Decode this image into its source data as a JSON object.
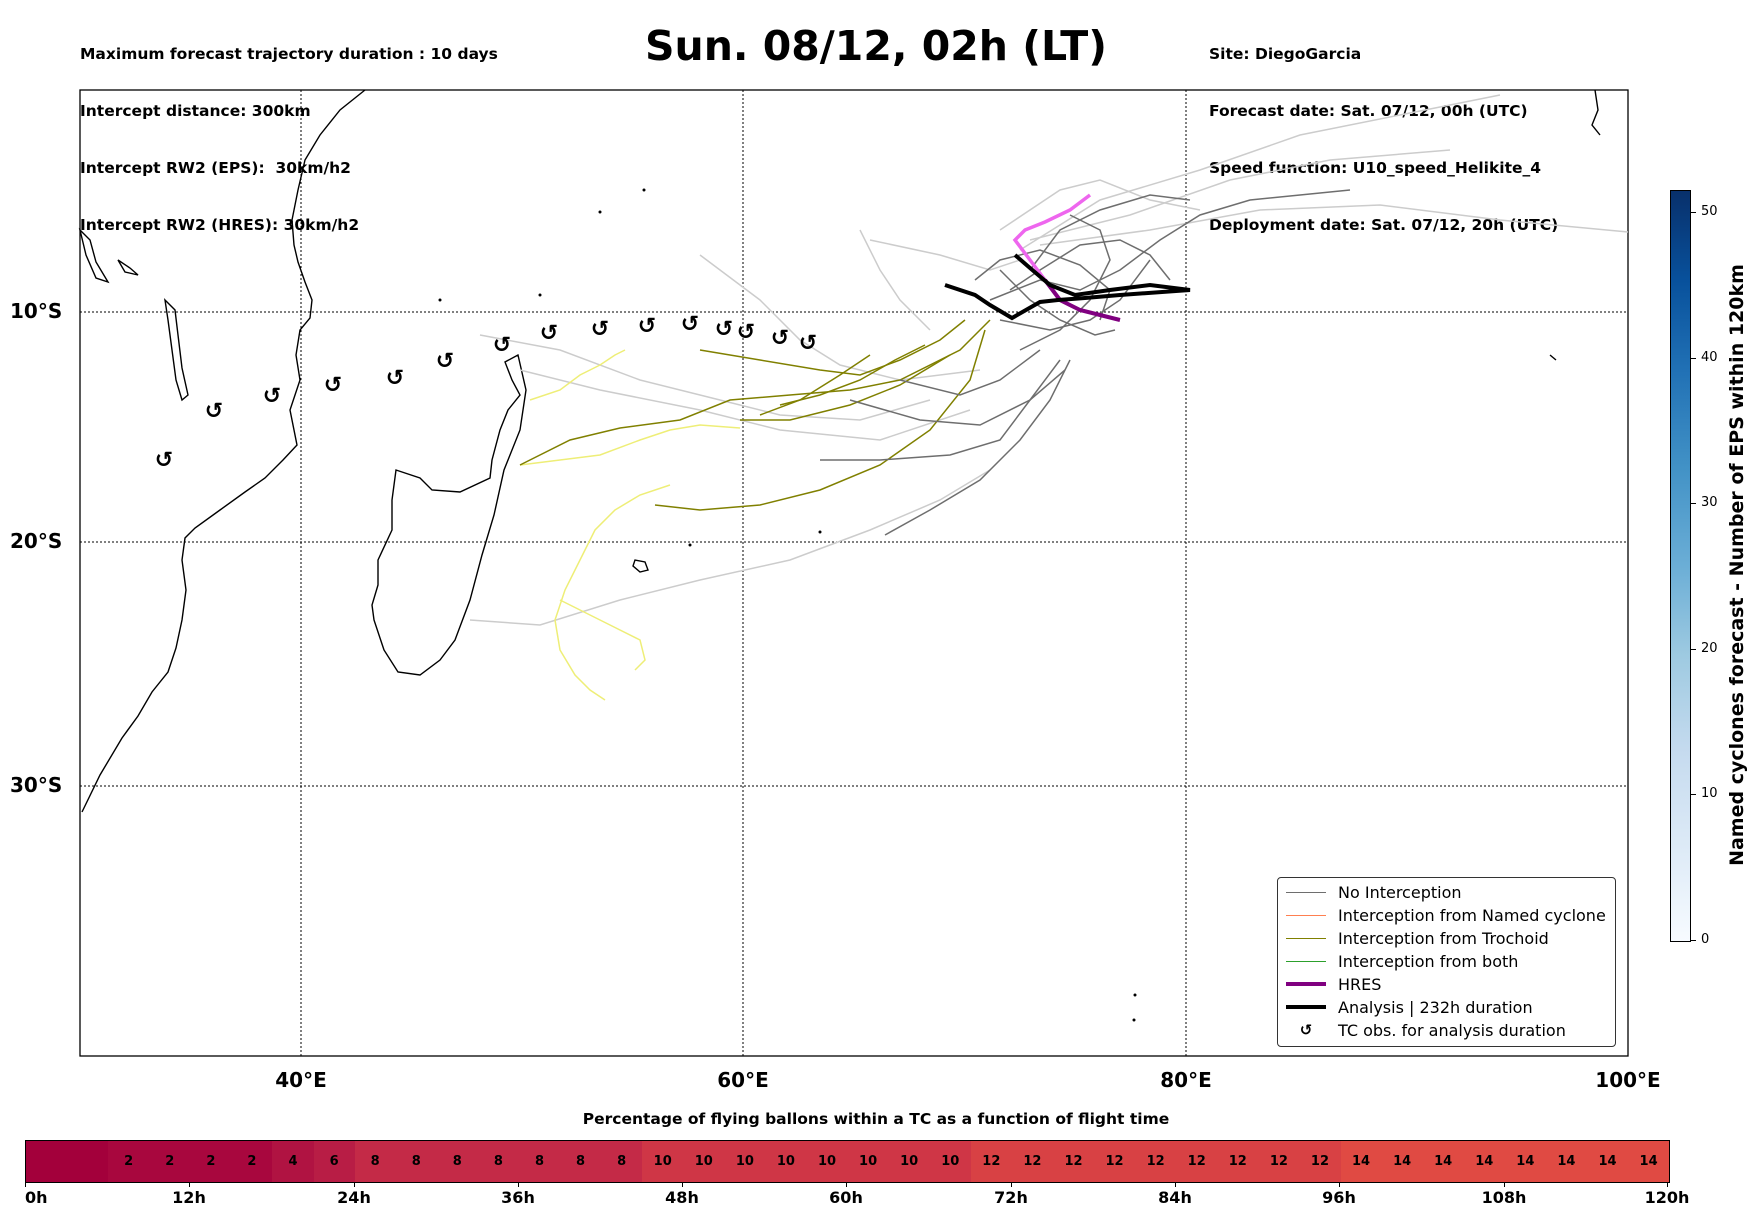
{
  "header": {
    "left_lines": [
      "Maximum forecast trajectory duration : 10 days",
      "Intercept distance: 300km",
      "Intercept RW2 (EPS):  30km/h2",
      "Intercept RW2 (HRES): 30km/h2"
    ],
    "title": "Sun. 08/12, 02h (LT)",
    "right_lines": [
      "Site: DiegoGarcia",
      "Forecast date: Sat. 07/12, 00h (UTC)",
      "Speed function: U10_speed_Helikite_4",
      "Deployment date: Sat. 07/12, 20h (UTC)"
    ]
  },
  "map": {
    "lat_labels": [
      "10°S",
      "20°S",
      "30°S"
    ],
    "lon_labels": [
      "40°E",
      "60°E",
      "80°E",
      "100°E"
    ],
    "colors": {
      "no_interception": "#6e6e6e",
      "named_cyclone": "#ff7f50",
      "trochoid": "#808000",
      "both": "#2ca02c",
      "hres": "#800080",
      "hres_light": "#ee66ee",
      "analysis": "#000000",
      "light_track": "#cccccc",
      "yellow_track": "#eeee77"
    },
    "tc_obs_icon": "cyclone-icon"
  },
  "legend": {
    "items": [
      {
        "label": "No Interception",
        "color": "#6e6e6e",
        "style": "line"
      },
      {
        "label": "Interception from Named cyclone",
        "color": "#ff7f50",
        "style": "line"
      },
      {
        "label": "Interception from Trochoid",
        "color": "#808000",
        "style": "line"
      },
      {
        "label": "Interception from both",
        "color": "#2ca02c",
        "style": "line"
      },
      {
        "label": "HRES",
        "color": "#800080",
        "style": "thick"
      },
      {
        "label": "Analysis | 232h duration",
        "color": "#000000",
        "style": "thick"
      },
      {
        "label": "TC obs. for analysis duration",
        "color": "#000000",
        "style": "icon"
      }
    ]
  },
  "colorbar_vertical": {
    "title": "Named cyclones forecast - Number of EPS within 120km",
    "ticks": [
      "0",
      "10",
      "20",
      "30",
      "40",
      "50"
    ]
  },
  "colorbar_horizontal": {
    "title": "Percentage of flying ballons within a TC as a function of flight time",
    "cells": [
      "",
      "",
      "2",
      "2",
      "2",
      "2",
      "4",
      "6",
      "8",
      "8",
      "8",
      "8",
      "8",
      "8",
      "8",
      "10",
      "10",
      "10",
      "10",
      "10",
      "10",
      "10",
      "10",
      "12",
      "12",
      "12",
      "12",
      "12",
      "12",
      "12",
      "12",
      "12",
      "14",
      "14",
      "14",
      "14",
      "14",
      "14",
      "14",
      "14"
    ],
    "tick_labels": [
      "0h",
      "12h",
      "24h",
      "36h",
      "48h",
      "60h",
      "72h",
      "84h",
      "96h",
      "108h",
      "120h"
    ]
  }
}
